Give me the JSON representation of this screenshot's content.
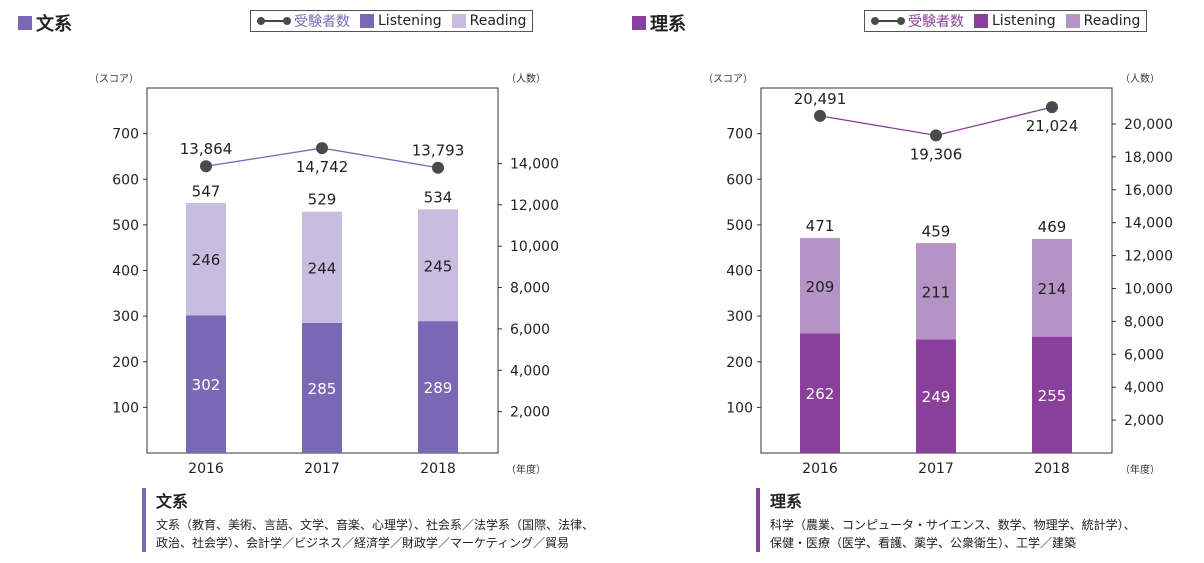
{
  "panels": [
    {
      "title": "文系",
      "accent": "#7a68b5",
      "legend": {
        "participants": "受験者数",
        "listening": "Listening",
        "reading": "Reading"
      },
      "note": {
        "title": "文系",
        "lines": [
          "文系（教育、美術、言語、文学、音楽、心理学）、社会系／法学系（国際、法律、",
          "政治、社会学）、会計学／ビジネス／経済学／財政学／マーケティング／貿易"
        ]
      }
    },
    {
      "title": "理系",
      "accent": "#8a3f9c",
      "legend": {
        "participants": "受験者数",
        "listening": "Listening",
        "reading": "Reading"
      },
      "note": {
        "title": "理系",
        "lines": [
          "科学（農業、コンピュータ・サイエンス、数学、物理学、統計学）、",
          "保健・医療（医学、看護、薬学、公衆衛生）、工学／建築"
        ]
      }
    }
  ],
  "chart_data": [
    {
      "type": "bar",
      "stacked": true,
      "categories": [
        "2016",
        "2017",
        "2018"
      ],
      "series": [
        {
          "name": "Listening",
          "values": [
            302,
            285,
            289
          ],
          "color": "#7a68b5"
        },
        {
          "name": "Reading",
          "values": [
            246,
            244,
            245
          ],
          "color": "#c8bde1"
        }
      ],
      "totals": [
        547,
        529,
        534
      ],
      "line": {
        "name": "受験者数",
        "values": [
          13864,
          14742,
          13793
        ],
        "labels": [
          "13,864",
          "14,742",
          "13,793"
        ]
      },
      "ylabel": "（スコア）",
      "y2label": "（人数）",
      "xunit": "（年度）",
      "ylim": [
        0,
        800
      ],
      "yticks": [
        "100",
        "200",
        "300",
        "400",
        "500",
        "600",
        "700"
      ],
      "y2lim": [
        0,
        17647
      ],
      "y2ticks": [
        2000,
        4000,
        6000,
        8000,
        10000,
        12000,
        14000
      ],
      "y2ticklabels": [
        "2,000",
        "4,000",
        "6,000",
        "8,000",
        "10,000",
        "12,000",
        "14,000"
      ],
      "legend_position": "top"
    },
    {
      "type": "bar",
      "stacked": true,
      "categories": [
        "2016",
        "2017",
        "2018"
      ],
      "series": [
        {
          "name": "Listening",
          "values": [
            262,
            249,
            255
          ],
          "color": "#8a3f9c"
        },
        {
          "name": "Reading",
          "values": [
            209,
            211,
            214
          ],
          "color": "#b593c4"
        }
      ],
      "totals": [
        471,
        459,
        469
      ],
      "line": {
        "name": "受験者数",
        "values": [
          20491,
          19306,
          21024
        ],
        "labels": [
          "20,491",
          "19,306",
          "21,024"
        ]
      },
      "ylabel": "（スコア）",
      "y2label": "（人数）",
      "xunit": "（年度）",
      "ylim": [
        0,
        800
      ],
      "yticks": [
        "100",
        "200",
        "300",
        "400",
        "500",
        "600",
        "700"
      ],
      "y2lim": [
        0,
        22187
      ],
      "y2ticks": [
        2000,
        4000,
        6000,
        8000,
        10000,
        12000,
        14000,
        16000,
        18000,
        20000
      ],
      "y2ticklabels": [
        "2,000",
        "4,000",
        "6,000",
        "8,000",
        "10,000",
        "12,000",
        "14,000",
        "16,000",
        "18,000",
        "20,000"
      ],
      "legend_position": "top"
    }
  ]
}
